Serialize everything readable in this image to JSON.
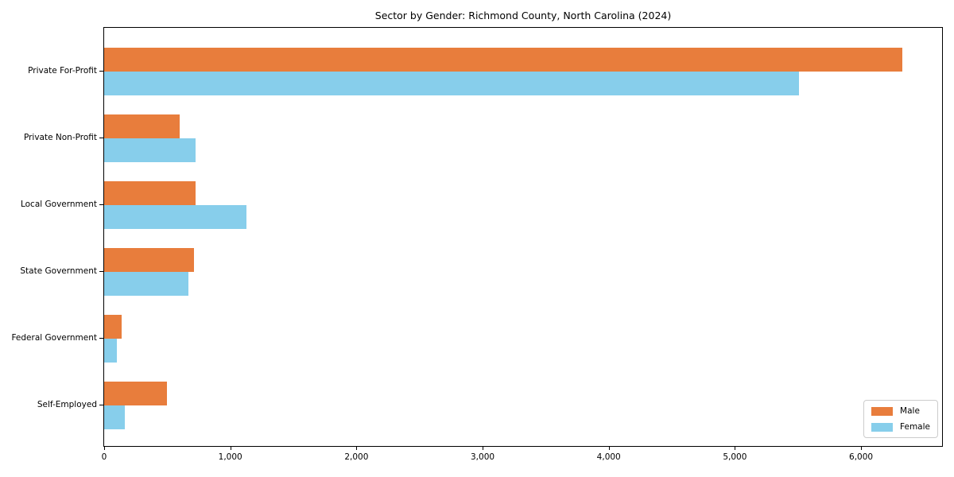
{
  "title": "Sector by Gender: Richmond County, North Carolina (2024)",
  "colors": {
    "male": "#e87d3c",
    "female": "#87ceeb",
    "spine": "#000000",
    "legend_border": "#cccccc",
    "background": "#ffffff"
  },
  "chart_data": {
    "type": "bar",
    "orientation": "horizontal",
    "title": "Sector by Gender: Richmond County, North Carolina (2024)",
    "xlabel": "",
    "ylabel": "",
    "categories": [
      "Private For-Profit",
      "Private Non-Profit",
      "Local Government",
      "State Government",
      "Federal Government",
      "Self-Employed"
    ],
    "series": [
      {
        "name": "Male",
        "color": "#e87d3c",
        "values": [
          6330,
          600,
          725,
          710,
          140,
          500
        ]
      },
      {
        "name": "Female",
        "color": "#87ceeb",
        "values": [
          5510,
          725,
          1130,
          670,
          100,
          165
        ]
      }
    ],
    "xlim": [
      0,
      6655
    ],
    "xticks": [
      0,
      1000,
      2000,
      3000,
      4000,
      5000,
      6000
    ],
    "xtick_labels": [
      "0",
      "1,000",
      "2,000",
      "3,000",
      "4,000",
      "5,000",
      "6,000"
    ],
    "grid": false,
    "legend_position": "lower right"
  }
}
